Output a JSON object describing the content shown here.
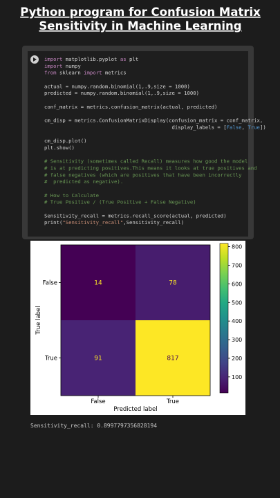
{
  "header": {
    "title": [
      "Python program for Confusion Matrix",
      "Sensitivity in Machine Learning"
    ]
  },
  "code": {
    "blocks": [
      [
        "import matplotlib.pyplot as plt",
        "import numpy",
        "from sklearn import metrics"
      ],
      [
        "actual = numpy.random.binomial(1,.9,size = 1000)",
        "predicted = numpy.random.binomial(1,.9,size = 1000)"
      ],
      [
        "conf_matrix = metrics.confusion_matrix(actual, predicted)"
      ],
      [
        "cm_disp = metrics.ConfusionMatrixDisplay(confusion_matrix = conf_matrix,",
        "                                          display_labels = [False, True])"
      ],
      [
        "cm_disp.plot()",
        "plt.show()"
      ],
      [
        "# Sensitivity (sometimes called Recall) measures how good the model",
        "# is at predicting positives.This means it looks at true positives and",
        "# false negatives (which are positives that have been incorrectly",
        "#  predicted as negative)."
      ],
      [
        "# How to Calculate",
        "# True Positive / (True Positive + False Negative)"
      ],
      [
        "Sensitivity_recall = metrics.recall_score(actual, predicted)",
        "print(\"Sensitivity_recall\",Sensitivity_recall)"
      ]
    ]
  },
  "output": {
    "plot": {
      "type": "heatmap",
      "rows": [
        "False",
        "True"
      ],
      "columns": [
        "False",
        "True"
      ],
      "values": [
        [
          14,
          78
        ],
        [
          91,
          817
        ]
      ],
      "xlabel": "Predicted label",
      "ylabel": "True label",
      "colormap": "viridis",
      "clim": [
        14,
        817
      ],
      "cticks": [
        100,
        200,
        300,
        400,
        500,
        600,
        700,
        800
      ]
    },
    "text": "Sensitivity_recall: 0.8997797356828194"
  }
}
